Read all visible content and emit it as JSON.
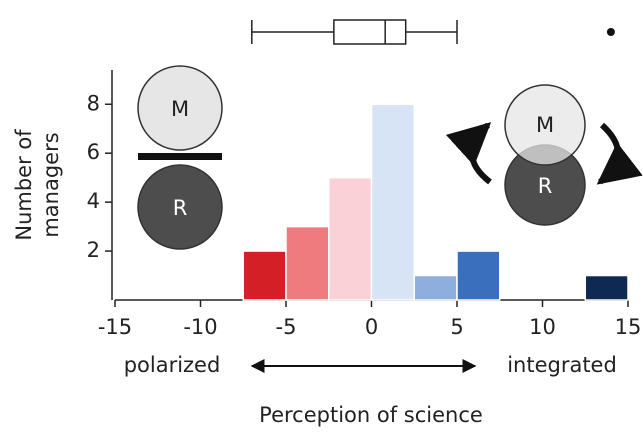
{
  "chart_data": {
    "type": "histogram",
    "xlabel": "Perception of science",
    "ylabel_lines": [
      "Number of",
      "managers"
    ],
    "bins": [
      -7.5,
      -5,
      -2.5,
      0,
      2.5,
      5,
      7.5,
      10,
      12.5,
      15
    ],
    "values": [
      2,
      3,
      5,
      8,
      1,
      2,
      0,
      0,
      1
    ],
    "colors": [
      "#d51f26",
      "#ef7b7f",
      "#f9d1d6",
      "#d6e4f5",
      "#8eafdd",
      "#3a6fbd",
      "#2c5a9e",
      "#1d4173",
      "#0f2a52"
    ],
    "xlim": [
      -15,
      15
    ],
    "xticks": [
      -15,
      -10,
      -5,
      0,
      5,
      10,
      15
    ],
    "ylim": [
      0,
      9.4
    ],
    "yticks": [
      2,
      4,
      6,
      8
    ],
    "boxplot": {
      "whisker_low": -7,
      "q1": -2.2,
      "median": 0.8,
      "q3": 2,
      "whisker_high": 5,
      "outliers": [
        14
      ]
    },
    "annotations": {
      "left": "polarized",
      "right": "integrated",
      "m_left": "M",
      "r_left": "R",
      "m_right": "M",
      "r_right": "R"
    }
  }
}
